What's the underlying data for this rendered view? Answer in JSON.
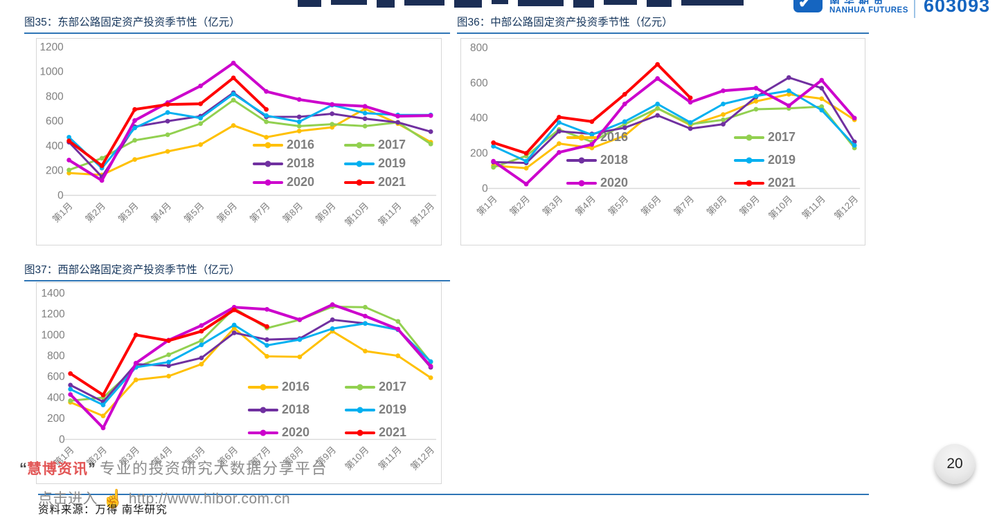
{
  "header": {
    "logo_cn_clipped": "南华期货",
    "logo_en": "NANHUA FUTURES",
    "stock_code": "603093"
  },
  "icons": {
    "logo_check_icon": "✔",
    "hand_pointer_icon": "☝"
  },
  "colors": {
    "accent_blue": "#2e75b6",
    "title_navy": "#16365c",
    "axis_gray": "#808080",
    "series_2016": "#FFC000",
    "series_2017": "#92D050",
    "series_2018": "#7030A0",
    "series_2019": "#00B0F0",
    "series_2020": "#CC00CC",
    "series_2021": "#FF0000"
  },
  "footer": {
    "watermark_open_quote": "“",
    "watermark_brand": "慧博资讯",
    "watermark_close_quote": "”",
    "watermark_tagline": "专业的投资研究大数据分享平台",
    "watermark_link_prefix": "点击进入",
    "watermark_url": "http://www.hibor.com.cn",
    "source_text": "资料来源：万得 南华研究",
    "page_number": "20"
  },
  "chart_data": [
    {
      "type": "line",
      "title": "图35：东部公路固定资产投资季节性（亿元）",
      "ylabel": "亿元",
      "ylim": [
        0,
        1200
      ],
      "ystep": 200,
      "grid": false,
      "legend_position": "inside-bottom-right",
      "categories": [
        "第1月",
        "第2月",
        "第3月",
        "第4月",
        "第5月",
        "第6月",
        "第7月",
        "第8月",
        "第9月",
        "第10月",
        "第11月",
        "第12月"
      ],
      "series": [
        {
          "name": "2016",
          "color": "#FFC000",
          "values": [
            180,
            165,
            290,
            355,
            410,
            565,
            470,
            520,
            550,
            700,
            580,
            430
          ]
        },
        {
          "name": "2017",
          "color": "#92D050",
          "values": [
            205,
            300,
            445,
            490,
            580,
            770,
            595,
            560,
            575,
            560,
            590,
            415
          ]
        },
        {
          "name": "2018",
          "color": "#7030A0",
          "values": [
            430,
            150,
            555,
            600,
            640,
            830,
            635,
            635,
            660,
            620,
            590,
            515
          ]
        },
        {
          "name": "2019",
          "color": "#00B0F0",
          "values": [
            470,
            220,
            545,
            670,
            625,
            820,
            645,
            595,
            730,
            665,
            650,
            650
          ]
        },
        {
          "name": "2020",
          "color": "#CC00CC",
          "values": [
            285,
            120,
            605,
            750,
            885,
            1070,
            840,
            775,
            735,
            720,
            640,
            645
          ]
        },
        {
          "name": "2021",
          "color": "#FF0000",
          "values": [
            440,
            240,
            695,
            735,
            740,
            950,
            695
          ]
        }
      ]
    },
    {
      "type": "line",
      "title": "图36：中部公路固定资产投资季节性（亿元）",
      "ylabel": "亿元",
      "ylim": [
        0,
        800
      ],
      "ystep": 200,
      "grid": false,
      "legend_position": "inside-bottom-right",
      "categories": [
        "第1月",
        "第2月",
        "第3月",
        "第4月",
        "第5月",
        "第6月",
        "第7月",
        "第8月",
        "第9月",
        "第10月",
        "第11月",
        "第12月"
      ],
      "series": [
        {
          "name": "2016",
          "color": "#FFC000",
          "values": [
            130,
            115,
            255,
            230,
            300,
            455,
            360,
            420,
            495,
            535,
            510,
            390
          ]
        },
        {
          "name": "2017",
          "color": "#92D050",
          "values": [
            120,
            185,
            335,
            265,
            365,
            455,
            365,
            390,
            450,
            455,
            465,
            230
          ]
        },
        {
          "name": "2018",
          "color": "#7030A0",
          "values": [
            150,
            145,
            325,
            310,
            345,
            415,
            340,
            365,
            520,
            630,
            570,
            265
          ]
        },
        {
          "name": "2019",
          "color": "#00B0F0",
          "values": [
            240,
            155,
            375,
            305,
            380,
            480,
            375,
            480,
            525,
            555,
            445,
            245
          ]
        },
        {
          "name": "2020",
          "color": "#CC00CC",
          "values": [
            155,
            25,
            205,
            250,
            480,
            625,
            490,
            555,
            570,
            470,
            615,
            400
          ]
        },
        {
          "name": "2021",
          "color": "#FF0000",
          "values": [
            260,
            200,
            405,
            380,
            535,
            705,
            515
          ]
        }
      ]
    },
    {
      "type": "line",
      "title": "图37：西部公路固定资产投资季节性（亿元）",
      "ylabel": "亿元",
      "ylim": [
        0,
        1400
      ],
      "ystep": 200,
      "grid": false,
      "legend_position": "inside-bottom-right",
      "categories": [
        "第1月",
        "第2月",
        "第3月",
        "第4月",
        "第5月",
        "第6月",
        "第7月",
        "第8月",
        "第9月",
        "第10月",
        "第11月",
        "第12月"
      ],
      "series": [
        {
          "name": "2016",
          "color": "#FFC000",
          "values": [
            355,
            225,
            570,
            605,
            720,
            1065,
            795,
            790,
            1035,
            845,
            800,
            590
          ]
        },
        {
          "name": "2017",
          "color": "#92D050",
          "values": [
            370,
            400,
            690,
            810,
            945,
            1255,
            1065,
            1145,
            1270,
            1265,
            1130,
            740
          ]
        },
        {
          "name": "2018",
          "color": "#7030A0",
          "values": [
            520,
            360,
            720,
            705,
            780,
            1020,
            955,
            965,
            1145,
            1110,
            1050,
            690
          ]
        },
        {
          "name": "2019",
          "color": "#00B0F0",
          "values": [
            480,
            330,
            690,
            740,
            905,
            1095,
            900,
            955,
            1060,
            1110,
            1050,
            745
          ]
        },
        {
          "name": "2020",
          "color": "#CC00CC",
          "values": [
            430,
            110,
            730,
            950,
            1090,
            1265,
            1245,
            1145,
            1290,
            1180,
            1055,
            700
          ]
        },
        {
          "name": "2021",
          "color": "#FF0000",
          "values": [
            630,
            425,
            1000,
            945,
            1035,
            1240,
            1080
          ]
        }
      ]
    }
  ]
}
